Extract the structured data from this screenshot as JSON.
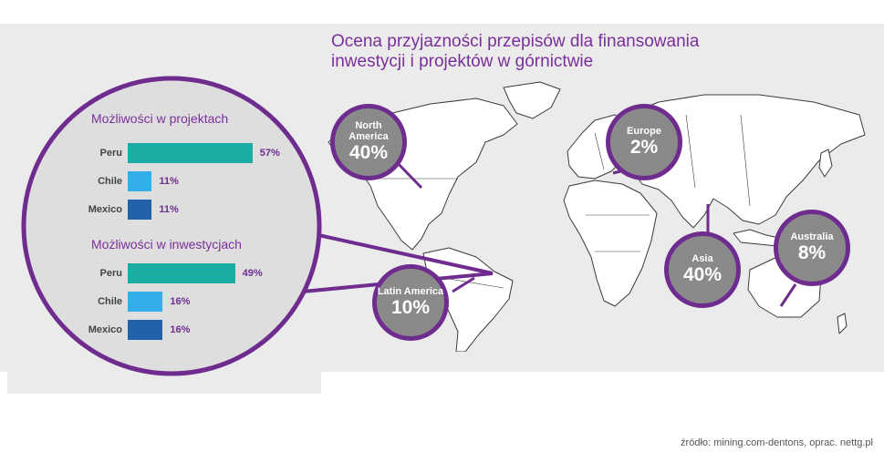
{
  "title": {
    "line1": "Ocena przyjazności przepisów dla finansowania",
    "line2": "inwestycji i projektów w górnictwie"
  },
  "regions": [
    {
      "name": "North America",
      "value": "40%"
    },
    {
      "name": "Europe",
      "value": "2%"
    },
    {
      "name": "Latin America",
      "value": "10%"
    },
    {
      "name": "Asia",
      "value": "40%"
    },
    {
      "name": "Australia",
      "value": "8%"
    }
  ],
  "chart_data": [
    {
      "type": "bar",
      "orientation": "horizontal",
      "title": "Możliwości w projektach",
      "categories": [
        "Peru",
        "Chile",
        "Mexico"
      ],
      "values": [
        57,
        11,
        11
      ],
      "value_labels": [
        "57%",
        "11%",
        "11%"
      ],
      "xlim": [
        0,
        100
      ]
    },
    {
      "type": "bar",
      "orientation": "horizontal",
      "title": "Możliwości w inwestycjach",
      "categories": [
        "Peru",
        "Chile",
        "Mexico"
      ],
      "values": [
        49,
        16,
        16
      ],
      "value_labels": [
        "49%",
        "16%",
        "16%"
      ],
      "xlim": [
        0,
        100
      ]
    }
  ],
  "colors": {
    "accent": "#6f2c8f",
    "title": "#7b2f9b",
    "peru": "#1bada3",
    "chile": "#33aee8",
    "mexico": "#2162a8",
    "region_fill": "#8a8a8a",
    "panel": "#ebebeb"
  },
  "source": "źródło: mining.com-dentons, oprac. nettg.pl"
}
